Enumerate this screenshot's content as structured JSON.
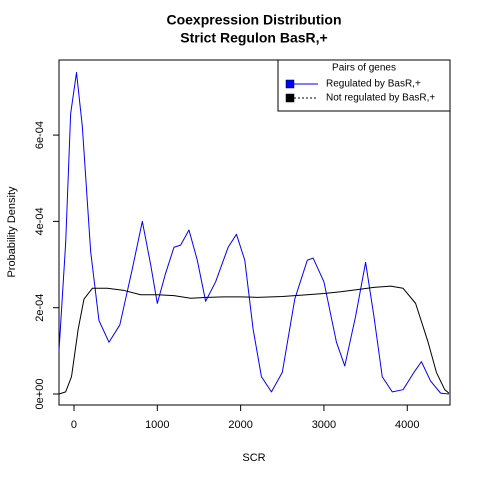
{
  "chart_data": {
    "type": "line",
    "title": "Coexpression Distribution",
    "subtitle": "Strict Regulon BasR,+",
    "x_label": "SCR",
    "y_label": "Probability Density",
    "xlim": [
      -180,
      4513
    ],
    "ylim": [
      -2.55e-05,
      0.000774
    ],
    "xticks": [
      0,
      1000,
      2000,
      3000,
      4000
    ],
    "yticks": [
      {
        "value": 0,
        "label": "0e+00"
      },
      {
        "value": 0.0002,
        "label": "2e-04"
      },
      {
        "value": 0.0004,
        "label": "4e-04"
      },
      {
        "value": 0.0006,
        "label": "6e-04"
      }
    ],
    "legend_title": "Pairs of genes",
    "legend_position": "top-right",
    "series": [
      {
        "name": "Regulated by  BasR,+",
        "color": "#0000ff",
        "x": [
          -180,
          -100,
          -40,
          30,
          100,
          200,
          300,
          420,
          550,
          700,
          820,
          920,
          1000,
          1100,
          1200,
          1280,
          1380,
          1480,
          1580,
          1700,
          1850,
          1950,
          2050,
          2150,
          2250,
          2370,
          2500,
          2650,
          2800,
          2870,
          3000,
          3150,
          3250,
          3380,
          3500,
          3600,
          3700,
          3820,
          3950,
          4080,
          4170,
          4280,
          4400,
          4500
        ],
        "values": [
          0.0001,
          0.00035,
          0.00065,
          0.000745,
          0.00062,
          0.00033,
          0.00017,
          0.00012,
          0.00016,
          0.00029,
          0.0004,
          0.0003,
          0.00021,
          0.00028,
          0.00034,
          0.000345,
          0.00038,
          0.00031,
          0.000215,
          0.00026,
          0.00034,
          0.00037,
          0.00031,
          0.00015,
          4e-05,
          5e-06,
          5e-05,
          0.00022,
          0.00031,
          0.000315,
          0.00026,
          0.00012,
          6.5e-05,
          0.00018,
          0.000305,
          0.00018,
          4e-05,
          5e-06,
          1e-05,
          5e-05,
          7.5e-05,
          3e-05,
          2e-06,
          0
        ]
      },
      {
        "name": "Not regulated by  BasR,+",
        "color": "#000000",
        "x": [
          -180,
          -100,
          -30,
          50,
          120,
          220,
          400,
          600,
          800,
          1000,
          1200,
          1400,
          1600,
          1800,
          2000,
          2200,
          2500,
          2800,
          3000,
          3200,
          3400,
          3600,
          3800,
          3950,
          4100,
          4250,
          4350,
          4450,
          4500
        ],
        "values": [
          0,
          5e-06,
          4e-05,
          0.00015,
          0.00022,
          0.000245,
          0.000245,
          0.00024,
          0.00023,
          0.00023,
          0.000228,
          0.000222,
          0.000224,
          0.000225,
          0.000225,
          0.000224,
          0.000226,
          0.00023,
          0.000233,
          0.000237,
          0.000242,
          0.000247,
          0.00025,
          0.000245,
          0.00021,
          0.00012,
          5e-05,
          1e-05,
          2e-06
        ]
      }
    ]
  }
}
